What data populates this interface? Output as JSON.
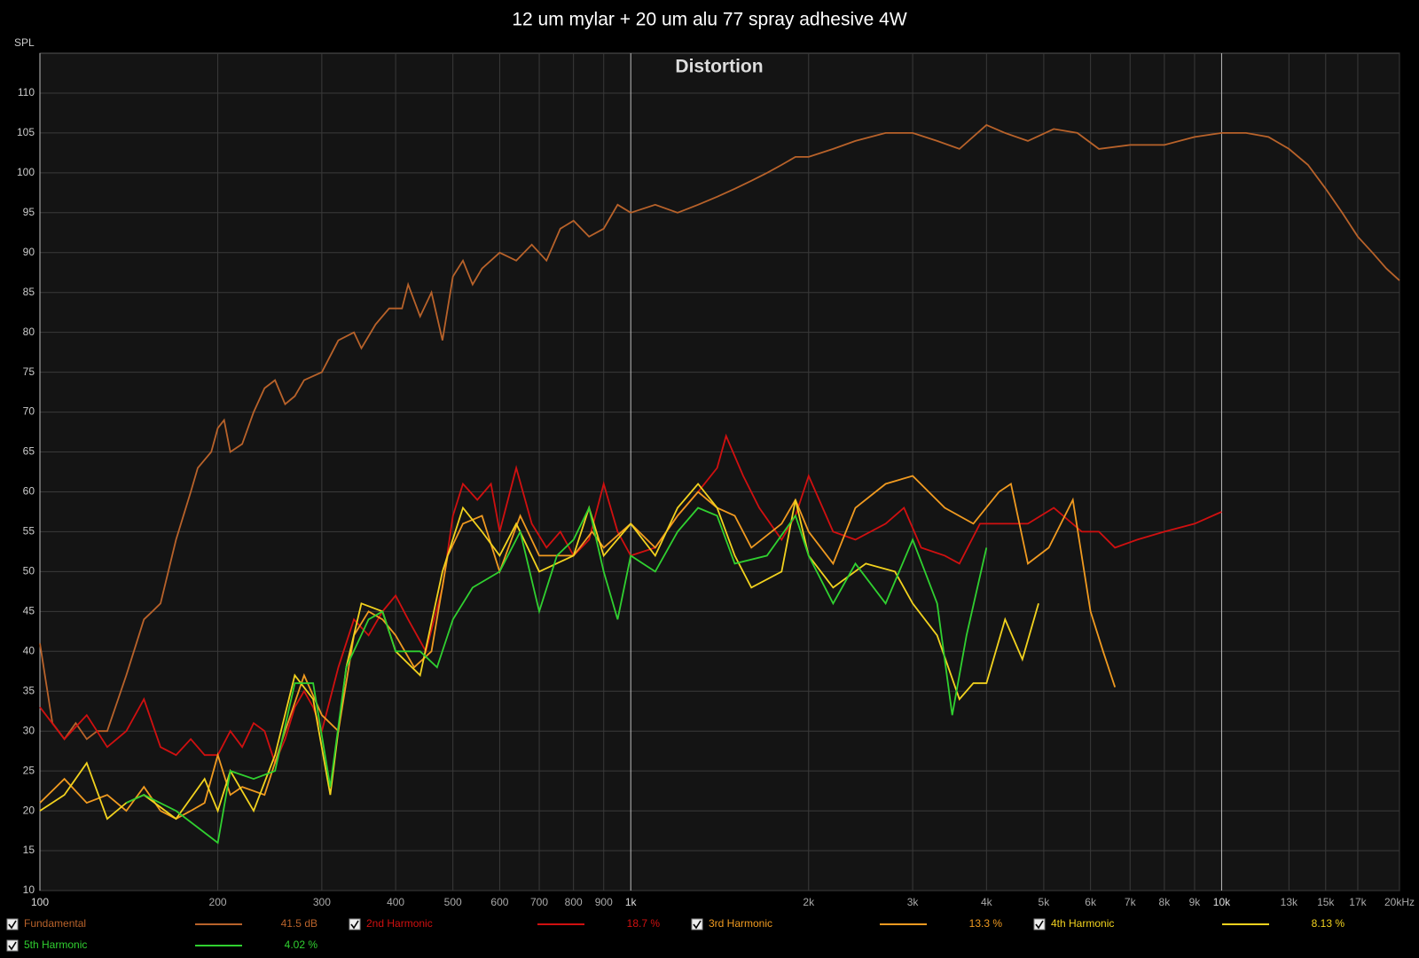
{
  "chart_data": {
    "type": "line",
    "title": "12 um mylar + 20 um alu 77 spray adhesive 4W",
    "subtitle": "Distortion",
    "y_label": "SPL",
    "xscale": "log",
    "grid": true,
    "xlim": [
      100,
      20000
    ],
    "ylim": [
      10,
      115
    ],
    "xticks": [
      100,
      200,
      300,
      400,
      500,
      600,
      700,
      800,
      900,
      {
        "value": 1000,
        "label": "1k"
      },
      {
        "value": 2000,
        "label": "2k"
      },
      {
        "value": 3000,
        "label": "3k"
      },
      {
        "value": 4000,
        "label": "4k"
      },
      {
        "value": 5000,
        "label": "5k"
      },
      {
        "value": 6000,
        "label": "6k"
      },
      {
        "value": 7000,
        "label": "7k"
      },
      {
        "value": 8000,
        "label": "8k"
      },
      {
        "value": 9000,
        "label": "9k"
      },
      {
        "value": 10000,
        "label": "10k"
      },
      {
        "value": 13000,
        "label": "13k"
      },
      {
        "value": 15000,
        "label": "15k"
      },
      {
        "value": 17000,
        "label": "17k"
      },
      {
        "value": 20000,
        "label": "20kHz"
      }
    ],
    "yticks": [
      10,
      15,
      20,
      25,
      30,
      35,
      40,
      45,
      50,
      55,
      60,
      65,
      70,
      75,
      80,
      85,
      90,
      95,
      100,
      105,
      110
    ],
    "series": [
      {
        "name": "Fundamental",
        "color": "#b8622a",
        "readout": "41.5 dB",
        "x": [
          100,
          105,
          110,
          115,
          120,
          125,
          130,
          140,
          150,
          155,
          160,
          170,
          180,
          185,
          195,
          200,
          205,
          210,
          220,
          230,
          240,
          250,
          260,
          270,
          280,
          300,
          320,
          340,
          350,
          370,
          390,
          410,
          420,
          440,
          460,
          480,
          500,
          520,
          540,
          560,
          600,
          640,
          680,
          720,
          760,
          800,
          850,
          900,
          950,
          1000,
          1100,
          1200,
          1300,
          1400,
          1500,
          1600,
          1700,
          1800,
          1900,
          2000,
          2200,
          2400,
          2700,
          3000,
          3300,
          3600,
          4000,
          4300,
          4700,
          5200,
          5700,
          6200,
          7000,
          8000,
          9000,
          10000,
          11000,
          12000,
          13000,
          14000,
          15000,
          16000,
          17000,
          18000,
          19000,
          20000
        ],
        "values": [
          41,
          31,
          29,
          31,
          29,
          30,
          30,
          37,
          44,
          45,
          46,
          54,
          60,
          63,
          65,
          68,
          69,
          65,
          66,
          70,
          73,
          74,
          71,
          72,
          74,
          75,
          79,
          80,
          78,
          81,
          83,
          83,
          86,
          82,
          85,
          79,
          87,
          89,
          86,
          88,
          90,
          89,
          91,
          89,
          93,
          94,
          92,
          93,
          96,
          95,
          96,
          95,
          96,
          97,
          98,
          99,
          100,
          101,
          102,
          102,
          103,
          104,
          105,
          105,
          104,
          103,
          106,
          105,
          104,
          105.5,
          105,
          103,
          103.5,
          103.5,
          104.5,
          105,
          105,
          104.5,
          103,
          101,
          98,
          95,
          92,
          90,
          88,
          86.5
        ]
      },
      {
        "name": "2nd Harmonic",
        "color": "#d01010",
        "readout": "18.7 %",
        "x": [
          100,
          110,
          120,
          130,
          140,
          150,
          160,
          170,
          180,
          190,
          200,
          210,
          220,
          230,
          240,
          250,
          260,
          270,
          280,
          290,
          300,
          320,
          340,
          360,
          380,
          400,
          420,
          450,
          480,
          500,
          520,
          550,
          580,
          600,
          640,
          680,
          720,
          760,
          800,
          850,
          900,
          950,
          1000,
          1100,
          1200,
          1300,
          1400,
          1450,
          1550,
          1650,
          1800,
          1900,
          2000,
          2200,
          2400,
          2700,
          2900,
          3100,
          3400,
          3600,
          3900,
          4300,
          4700,
          5200,
          5800,
          6200,
          6600,
          7200,
          8000,
          9000,
          10000
        ],
        "values": [
          33,
          29,
          32,
          28,
          30,
          34,
          28,
          27,
          29,
          27,
          27,
          30,
          28,
          31,
          30,
          26,
          29,
          33,
          35,
          33,
          30,
          38,
          44,
          42,
          45,
          47,
          44,
          40,
          48,
          57,
          61,
          59,
          61,
          55,
          63,
          56,
          53,
          55,
          52,
          54,
          61,
          55,
          52,
          53,
          57,
          60,
          63,
          67,
          62,
          58,
          54,
          57,
          62,
          55,
          54,
          56,
          58,
          53,
          52,
          51,
          56,
          56,
          56,
          58,
          55,
          55,
          53,
          54,
          55,
          56,
          57.5
        ]
      },
      {
        "name": "3rd Harmonic",
        "color": "#f09a20",
        "readout": "13.3 %",
        "x": [
          100,
          110,
          120,
          130,
          140,
          150,
          160,
          170,
          180,
          190,
          200,
          210,
          220,
          240,
          260,
          280,
          300,
          320,
          340,
          360,
          380,
          400,
          430,
          460,
          490,
          520,
          560,
          600,
          650,
          700,
          750,
          800,
          860,
          900,
          1000,
          1100,
          1200,
          1300,
          1400,
          1500,
          1600,
          1800,
          1900,
          2000,
          2200,
          2400,
          2700,
          3000,
          3400,
          3800,
          4200,
          4400,
          4700,
          5100,
          5600,
          6000,
          6300,
          6600
        ],
        "values": [
          21,
          24,
          21,
          22,
          20,
          23,
          20,
          19,
          20,
          21,
          27,
          22,
          23,
          22,
          30,
          37,
          32,
          30,
          42,
          45,
          44,
          42,
          38,
          40,
          52,
          56,
          57,
          50,
          57,
          52,
          52,
          52,
          55,
          53,
          56,
          53,
          57,
          60,
          58,
          57,
          53,
          56,
          59,
          55,
          51,
          58,
          61,
          62,
          58,
          56,
          60,
          61,
          51,
          53,
          59,
          45,
          40,
          35.5
        ]
      },
      {
        "name": "4th Harmonic",
        "color": "#f2d21e",
        "readout": "8.13 %",
        "x": [
          100,
          110,
          120,
          130,
          140,
          150,
          170,
          190,
          200,
          210,
          230,
          250,
          270,
          290,
          310,
          330,
          350,
          380,
          400,
          440,
          480,
          520,
          560,
          600,
          640,
          700,
          800,
          850,
          900,
          1000,
          1100,
          1200,
          1300,
          1400,
          1500,
          1600,
          1800,
          1900,
          2000,
          2200,
          2500,
          2800,
          3000,
          3300,
          3600,
          3800,
          4000,
          4300,
          4600,
          4900
        ],
        "values": [
          20,
          22,
          26,
          19,
          21,
          22,
          19,
          24,
          20,
          25,
          20,
          27,
          37,
          34,
          22,
          38,
          46,
          45,
          40,
          37,
          50,
          58,
          55,
          52,
          56,
          50,
          52,
          58,
          52,
          56,
          52,
          58,
          61,
          58,
          52,
          48,
          50,
          59,
          52,
          48,
          51,
          50,
          46,
          42,
          34,
          36,
          36,
          44,
          39,
          46
        ]
      },
      {
        "name": "5th Harmonic",
        "color": "#30d030",
        "readout": "4.02 %",
        "x": [
          140,
          150,
          170,
          200,
          210,
          230,
          250,
          270,
          290,
          310,
          330,
          360,
          380,
          400,
          440,
          470,
          500,
          540,
          600,
          650,
          700,
          750,
          800,
          850,
          900,
          950,
          1000,
          1100,
          1200,
          1300,
          1400,
          1500,
          1700,
          1900,
          2000,
          2200,
          2400,
          2700,
          3000,
          3300,
          3500,
          3700,
          4000
        ],
        "values": [
          21,
          22,
          20,
          16,
          25,
          24,
          25,
          36,
          36,
          23,
          38,
          44,
          45,
          40,
          40,
          38,
          44,
          48,
          50,
          55,
          45,
          52,
          54,
          58,
          50,
          44,
          52,
          50,
          55,
          58,
          57,
          51,
          52,
          57,
          52,
          46,
          51,
          46,
          54,
          46,
          32,
          42,
          53
        ]
      }
    ]
  }
}
